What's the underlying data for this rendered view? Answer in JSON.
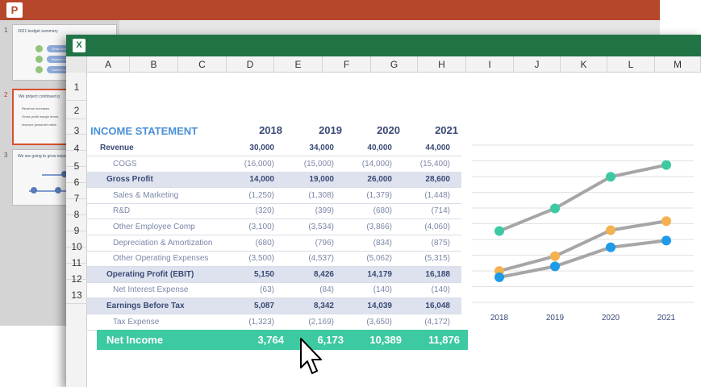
{
  "ppt": {
    "slides": [
      {
        "num": "1",
        "title": "2021 budget summary",
        "pills": [
          "Grow revenue",
          "Improve margins",
          "Control costs"
        ]
      },
      {
        "num": "2",
        "title": "We project continued g",
        "bullets": [
          "Revenue increases",
          "Gross profit margin levels",
          "Improve gross/net ratios"
        ]
      },
      {
        "num": "3",
        "title": "We are going to grow expense"
      }
    ]
  },
  "excel": {
    "columns": [
      "A",
      "B",
      "C",
      "D",
      "E",
      "F",
      "G",
      "H",
      "I",
      "J",
      "K",
      "L",
      "M"
    ],
    "rows": [
      "1",
      "2",
      "3",
      "4",
      "5",
      "6",
      "7",
      "8",
      "9",
      "10",
      "11",
      "12",
      "13"
    ]
  },
  "income_statement": {
    "title": "INCOME STATEMENT",
    "years": [
      "2018",
      "2019",
      "2020",
      "2021"
    ],
    "rows": [
      {
        "label": "Revenue",
        "values": [
          "30,000",
          "34,000",
          "40,000",
          "44,000"
        ]
      },
      {
        "label": "COGS",
        "values": [
          "(16,000)",
          "(15,000)",
          "(14,000)",
          "(15,400)"
        ]
      },
      {
        "label": "Gross Profit",
        "values": [
          "14,000",
          "19,000",
          "26,000",
          "28,600"
        ]
      },
      {
        "label": "Sales & Marketing",
        "values": [
          "(1,250)",
          "(1,308)",
          "(1,379)",
          "(1,448)"
        ]
      },
      {
        "label": "R&D",
        "values": [
          "(320)",
          "(399)",
          "(680)",
          "(714)"
        ]
      },
      {
        "label": "Other Employee Comp",
        "values": [
          "(3,100)",
          "(3,534)",
          "(3,866)",
          "(4,060)"
        ]
      },
      {
        "label": "Depreciation & Amortization",
        "values": [
          "(680)",
          "(796)",
          "(834)",
          "(875)"
        ]
      },
      {
        "label": "Other Operating Expenses",
        "values": [
          "(3,500)",
          "(4,537)",
          "(5,062)",
          "(5,315)"
        ]
      },
      {
        "label": "Operating Profit (EBIT)",
        "values": [
          "5,150",
          "8,426",
          "14,179",
          "16,188"
        ]
      },
      {
        "label": "Net Interest Expense",
        "values": [
          "(63)",
          "(84)",
          "(140)",
          "(140)"
        ]
      },
      {
        "label": "Earnings Before Tax",
        "values": [
          "5,087",
          "8,342",
          "14,039",
          "16,048"
        ]
      },
      {
        "label": "Tax Expense",
        "values": [
          "(1,323)",
          "(2,169)",
          "(3,650)",
          "(4,172)"
        ]
      }
    ],
    "net_income": {
      "label": "Net Income",
      "values": [
        "3,764",
        "6,173",
        "10,389",
        "11,876"
      ]
    }
  },
  "chart_data": {
    "type": "line",
    "x": [
      "2018",
      "2019",
      "2020",
      "2021"
    ],
    "series": [
      {
        "values": [
          14000,
          19000,
          26000,
          28600
        ],
        "color": "#3dc9a1"
      },
      {
        "values": [
          5150,
          8426,
          14179,
          16188
        ],
        "color": "#f5b04f"
      },
      {
        "values": [
          3764,
          6173,
          10389,
          11876
        ],
        "color": "#1e9be8"
      }
    ],
    "line_color": "#a6a6a6",
    "grid": true,
    "legend": "none"
  }
}
